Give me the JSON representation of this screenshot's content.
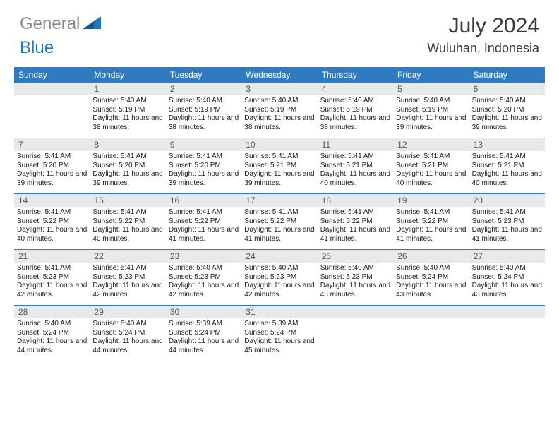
{
  "brand": {
    "text_gray": "General",
    "text_blue": "Blue",
    "gray_color": "#888888",
    "blue_color": "#2576b9"
  },
  "title": "July 2024",
  "location": "Wuluhan, Indonesia",
  "colors": {
    "header_bg": "#2f7bbf",
    "header_text": "#ffffff",
    "daynum_bg": "#e8e9ea",
    "daynum_text": "#555555",
    "divider": "#2f7bbf",
    "body_text": "#1a1a1a",
    "page_bg": "#ffffff"
  },
  "day_labels": [
    "Sunday",
    "Monday",
    "Tuesday",
    "Wednesday",
    "Thursday",
    "Friday",
    "Saturday"
  ],
  "weeks": [
    [
      {
        "n": "",
        "sr": "",
        "ss": "",
        "dl": ""
      },
      {
        "n": "1",
        "sr": "5:40 AM",
        "ss": "5:19 PM",
        "dl": "11 hours and 38 minutes."
      },
      {
        "n": "2",
        "sr": "5:40 AM",
        "ss": "5:19 PM",
        "dl": "11 hours and 38 minutes."
      },
      {
        "n": "3",
        "sr": "5:40 AM",
        "ss": "5:19 PM",
        "dl": "11 hours and 38 minutes."
      },
      {
        "n": "4",
        "sr": "5:40 AM",
        "ss": "5:19 PM",
        "dl": "11 hours and 38 minutes."
      },
      {
        "n": "5",
        "sr": "5:40 AM",
        "ss": "5:19 PM",
        "dl": "11 hours and 39 minutes."
      },
      {
        "n": "6",
        "sr": "5:40 AM",
        "ss": "5:20 PM",
        "dl": "11 hours and 39 minutes."
      }
    ],
    [
      {
        "n": "7",
        "sr": "5:41 AM",
        "ss": "5:20 PM",
        "dl": "11 hours and 39 minutes."
      },
      {
        "n": "8",
        "sr": "5:41 AM",
        "ss": "5:20 PM",
        "dl": "11 hours and 39 minutes."
      },
      {
        "n": "9",
        "sr": "5:41 AM",
        "ss": "5:20 PM",
        "dl": "11 hours and 39 minutes."
      },
      {
        "n": "10",
        "sr": "5:41 AM",
        "ss": "5:21 PM",
        "dl": "11 hours and 39 minutes."
      },
      {
        "n": "11",
        "sr": "5:41 AM",
        "ss": "5:21 PM",
        "dl": "11 hours and 40 minutes."
      },
      {
        "n": "12",
        "sr": "5:41 AM",
        "ss": "5:21 PM",
        "dl": "11 hours and 40 minutes."
      },
      {
        "n": "13",
        "sr": "5:41 AM",
        "ss": "5:21 PM",
        "dl": "11 hours and 40 minutes."
      }
    ],
    [
      {
        "n": "14",
        "sr": "5:41 AM",
        "ss": "5:22 PM",
        "dl": "11 hours and 40 minutes."
      },
      {
        "n": "15",
        "sr": "5:41 AM",
        "ss": "5:22 PM",
        "dl": "11 hours and 40 minutes."
      },
      {
        "n": "16",
        "sr": "5:41 AM",
        "ss": "5:22 PM",
        "dl": "11 hours and 41 minutes."
      },
      {
        "n": "17",
        "sr": "5:41 AM",
        "ss": "5:22 PM",
        "dl": "11 hours and 41 minutes."
      },
      {
        "n": "18",
        "sr": "5:41 AM",
        "ss": "5:22 PM",
        "dl": "11 hours and 41 minutes."
      },
      {
        "n": "19",
        "sr": "5:41 AM",
        "ss": "5:22 PM",
        "dl": "11 hours and 41 minutes."
      },
      {
        "n": "20",
        "sr": "5:41 AM",
        "ss": "5:23 PM",
        "dl": "11 hours and 41 minutes."
      }
    ],
    [
      {
        "n": "21",
        "sr": "5:41 AM",
        "ss": "5:23 PM",
        "dl": "11 hours and 42 minutes."
      },
      {
        "n": "22",
        "sr": "5:41 AM",
        "ss": "5:23 PM",
        "dl": "11 hours and 42 minutes."
      },
      {
        "n": "23",
        "sr": "5:40 AM",
        "ss": "5:23 PM",
        "dl": "11 hours and 42 minutes."
      },
      {
        "n": "24",
        "sr": "5:40 AM",
        "ss": "5:23 PM",
        "dl": "11 hours and 42 minutes."
      },
      {
        "n": "25",
        "sr": "5:40 AM",
        "ss": "5:23 PM",
        "dl": "11 hours and 43 minutes."
      },
      {
        "n": "26",
        "sr": "5:40 AM",
        "ss": "5:24 PM",
        "dl": "11 hours and 43 minutes."
      },
      {
        "n": "27",
        "sr": "5:40 AM",
        "ss": "5:24 PM",
        "dl": "11 hours and 43 minutes."
      }
    ],
    [
      {
        "n": "28",
        "sr": "5:40 AM",
        "ss": "5:24 PM",
        "dl": "11 hours and 44 minutes."
      },
      {
        "n": "29",
        "sr": "5:40 AM",
        "ss": "5:24 PM",
        "dl": "11 hours and 44 minutes."
      },
      {
        "n": "30",
        "sr": "5:39 AM",
        "ss": "5:24 PM",
        "dl": "11 hours and 44 minutes."
      },
      {
        "n": "31",
        "sr": "5:39 AM",
        "ss": "5:24 PM",
        "dl": "11 hours and 45 minutes."
      },
      {
        "n": "",
        "sr": "",
        "ss": "",
        "dl": ""
      },
      {
        "n": "",
        "sr": "",
        "ss": "",
        "dl": ""
      },
      {
        "n": "",
        "sr": "",
        "ss": "",
        "dl": ""
      }
    ]
  ],
  "labels": {
    "sunrise": "Sunrise:",
    "sunset": "Sunset:",
    "daylight": "Daylight:"
  }
}
